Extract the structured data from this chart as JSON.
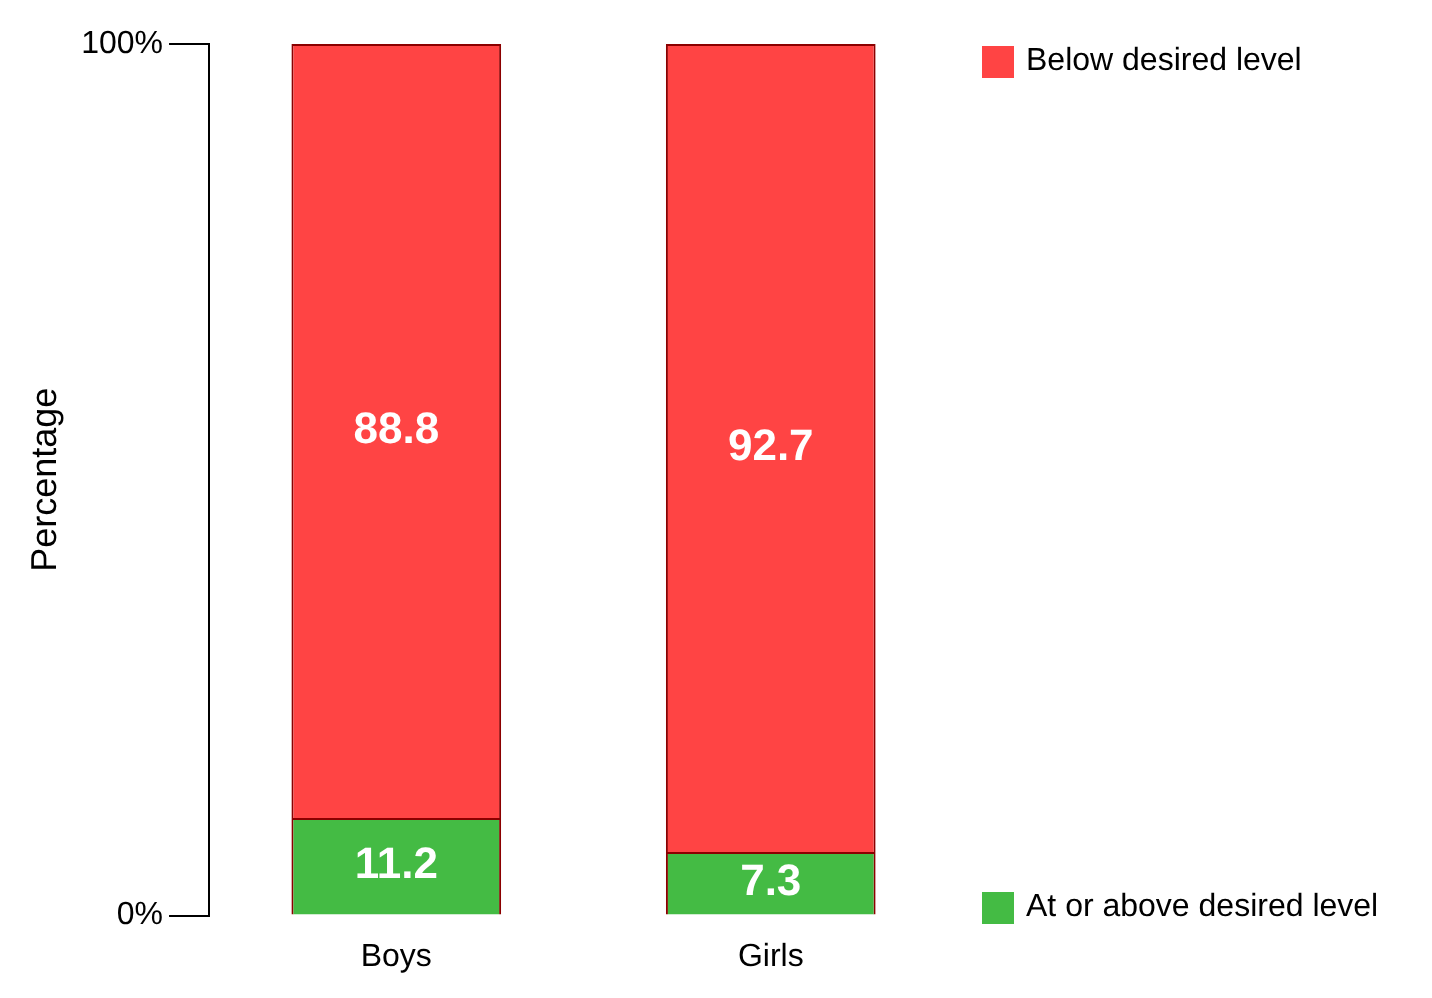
{
  "chart_data": {
    "type": "bar",
    "stacked": true,
    "categories": [
      "Boys",
      "Girls"
    ],
    "series": [
      {
        "name": "At or above desired level",
        "color": "#44bb44",
        "values": [
          11.2,
          7.3
        ]
      },
      {
        "name": "Below desired level",
        "color": "#ff4444",
        "values": [
          88.8,
          92.7
        ]
      }
    ],
    "ylabel": "Percentage",
    "ylim": [
      0,
      100
    ],
    "yticks": [
      {
        "value": 0,
        "label": "0%"
      },
      {
        "value": 100,
        "label": "100%"
      }
    ],
    "grid": false,
    "legend": "right",
    "data_labels": true
  }
}
